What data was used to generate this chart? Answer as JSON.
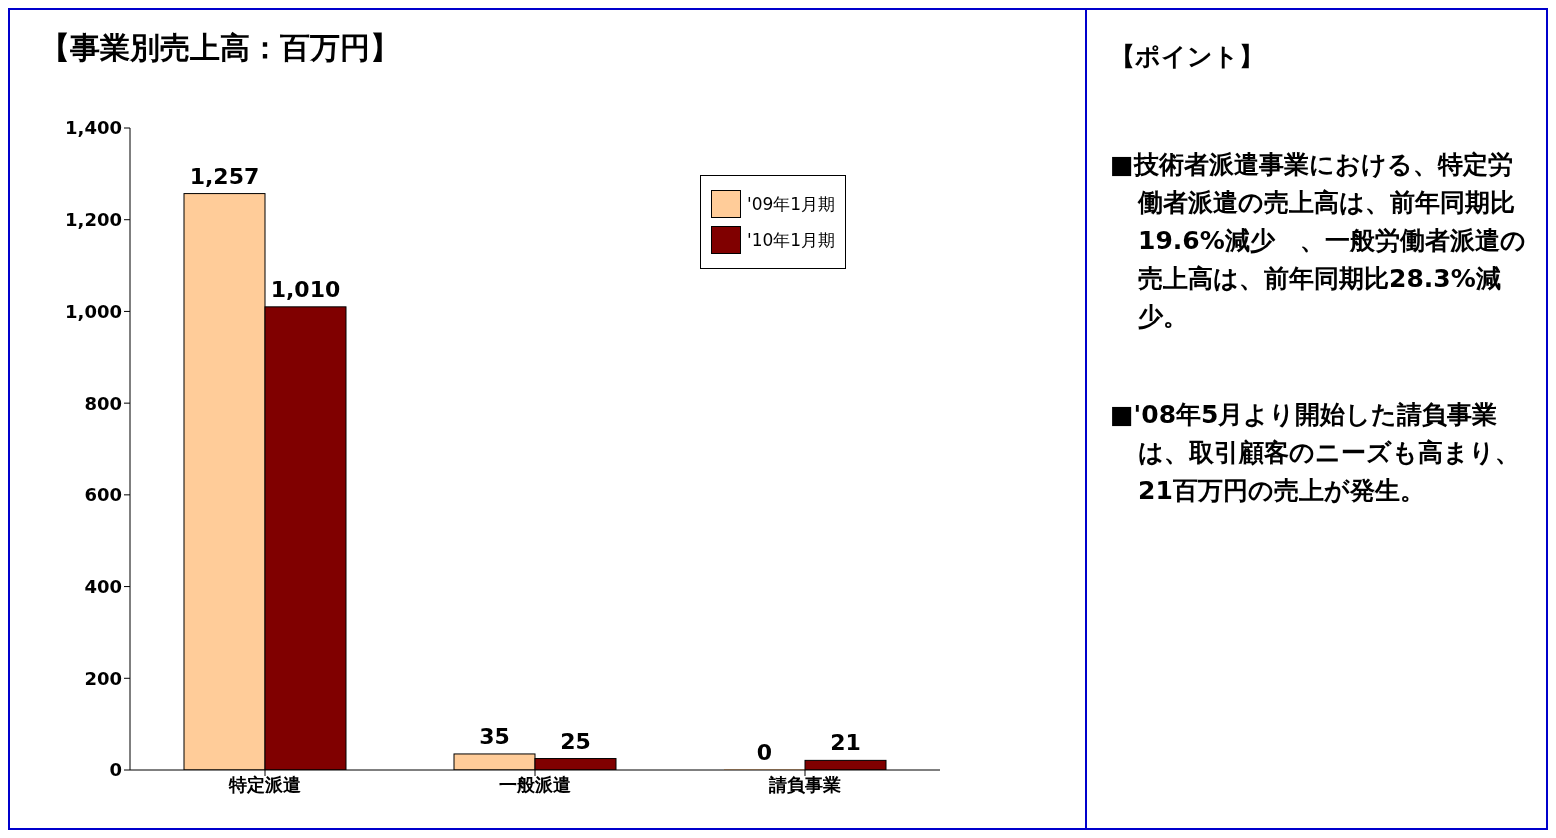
{
  "chart_data": {
    "type": "bar",
    "title": "【事業別売上高：百万円】",
    "categories": [
      "特定派遣",
      "一般派遣",
      "請負事業"
    ],
    "series": [
      {
        "name": "'09年1月期",
        "color": "#ffcc99",
        "values": [
          1257,
          35,
          0
        ],
        "value_labels": [
          "1,257",
          "35",
          "0"
        ]
      },
      {
        "name": "'10年1月期",
        "color": "#800000",
        "values": [
          1010,
          25,
          21
        ],
        "value_labels": [
          "1,010",
          "25",
          "21"
        ]
      }
    ],
    "ylim": [
      0,
      1400
    ],
    "yticks": [
      0,
      200,
      400,
      600,
      800,
      {
        "value": 1000,
        "label": "1,000"
      },
      {
        "value": 1200,
        "label": "1,200"
      },
      {
        "value": 1400,
        "label": "1,400"
      }
    ],
    "legend": "top right",
    "grid": false,
    "annotations": [
      "【ポイント】",
      "■技術者派遣事業における、特定労働者派遣の売上高は、前年同期比19.6%減少　、一般労働者派遣の売上高は、前年同期比28.3%減少。",
      "■'08年5月より開始した請負事業は、取引顧客のニーズも高まり、21百万円の売上が発生。"
    ]
  }
}
